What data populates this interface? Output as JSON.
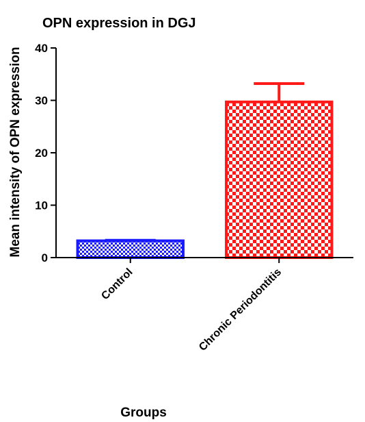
{
  "chart_data": {
    "type": "bar",
    "title": "OPN expression in DGJ",
    "xlabel": "Groups",
    "ylabel": "Mean intensity of OPN expression",
    "ylim": [
      0,
      40
    ],
    "yticks": [
      0,
      10,
      20,
      30,
      40
    ],
    "categories": [
      "Control",
      "Chronic Periodontitis"
    ],
    "values": [
      3.2,
      29.7
    ],
    "error": [
      0.1,
      3.5
    ],
    "colors": [
      "#1a1aff",
      "#ff1a1a"
    ],
    "pattern": "checkered",
    "grid": false,
    "legend": "none"
  }
}
